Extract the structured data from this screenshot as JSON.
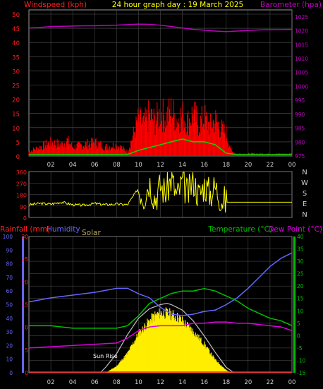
{
  "colors": {
    "background": "#000000",
    "frame": "#9a9a9a",
    "grid": "#555555",
    "wind_axis": "#ff2020",
    "baro_axis": "#c000c0",
    "title": "#ffff00",
    "wind_speed": "#ff0000",
    "wind_avg": "#00dd00",
    "wind_dir": "#ffff00",
    "rain": "#ff2020",
    "humidity": "#6666ff",
    "solar": "#ffee00",
    "temperature": "#00c000",
    "dew_point": "#dd00dd",
    "label_text": "#cfcfcf"
  },
  "chart_data": [
    {
      "type": "line",
      "panel": "wind_pressure",
      "title": "24 hour graph day : 19 March 2025",
      "left_axis_label": "Windspeed (kph)",
      "right_axis_label": "Barometer (hpa)",
      "x_ticks": [
        "02",
        "04",
        "06",
        "08",
        "10",
        "12",
        "14",
        "16",
        "18",
        "20",
        "22",
        "00"
      ],
      "y_left": {
        "ticks": [
          "0",
          "5",
          "10",
          "15",
          "20",
          "25",
          "30",
          "35",
          "40",
          "45",
          "50"
        ],
        "range": [
          0,
          50
        ]
      },
      "y_right": {
        "ticks": [
          "975",
          "980",
          "985",
          "990",
          "995",
          "1000",
          "1005",
          "1010",
          "1015",
          "1020",
          "1025"
        ],
        "range": [
          975,
          1027.5
        ]
      },
      "x_range": [
        0,
        24
      ],
      "series": [
        {
          "name": "Barometer",
          "x": [
            0,
            1,
            2,
            3,
            4,
            5,
            6,
            7,
            8,
            9,
            10,
            11,
            12,
            13,
            14,
            15,
            16,
            17,
            18,
            19,
            20,
            21,
            22,
            23,
            24
          ],
          "y": [
            1021.0,
            1021.2,
            1021.5,
            1021.6,
            1021.7,
            1021.8,
            1021.8,
            1021.9,
            1022.0,
            1022.2,
            1022.4,
            1022.3,
            1022.0,
            1021.5,
            1021.0,
            1020.5,
            1020.2,
            1019.9,
            1019.7,
            1019.9,
            1020.1,
            1020.3,
            1020.4,
            1020.4,
            1020.5
          ]
        },
        {
          "name": "Wind gust",
          "x": [
            0,
            1,
            2,
            3,
            3.5,
            4,
            5,
            6,
            7,
            8,
            9,
            10,
            10.5,
            11,
            11.5,
            12,
            12.5,
            13,
            13.5,
            14,
            14.5,
            15,
            15.5,
            16,
            16.5,
            17,
            17.5,
            18,
            18.5,
            19,
            20,
            21,
            22,
            23,
            24
          ],
          "y": [
            2,
            4,
            6,
            5,
            7,
            4,
            5,
            6,
            4,
            5,
            2,
            16,
            14,
            18,
            15,
            19,
            17,
            20,
            16,
            18,
            15,
            19,
            14,
            17,
            13,
            16,
            12,
            10,
            2,
            1,
            1,
            1,
            1,
            1,
            1
          ]
        },
        {
          "name": "Average wind",
          "x": [
            0,
            2,
            4,
            6,
            8,
            9,
            10,
            11,
            12,
            13,
            14,
            15,
            16,
            17,
            18,
            19,
            20,
            22,
            24
          ],
          "y": [
            0.5,
            0.5,
            0.5,
            0.5,
            0.5,
            0.5,
            2,
            3,
            4,
            5,
            6,
            5,
            5,
            4,
            1,
            0.5,
            0.5,
            0.5,
            0.5
          ]
        }
      ]
    },
    {
      "type": "line",
      "panel": "wind_direction",
      "y_ticks": [
        "0",
        "90",
        "180",
        "270",
        "360"
      ],
      "y_range": [
        0,
        360
      ],
      "compass_labels": [
        "N",
        "W",
        "S",
        "E",
        "N"
      ],
      "x_range": [
        0,
        24
      ],
      "series": [
        {
          "name": "Wind direction",
          "x": [
            0,
            1,
            2,
            3,
            4,
            5,
            6,
            7,
            8,
            9,
            10,
            10.5,
            11,
            11.5,
            12,
            12.5,
            13,
            13.5,
            14,
            14.5,
            15,
            15.5,
            16,
            16.5,
            17,
            17.5,
            18,
            19,
            20,
            21,
            22,
            23,
            24
          ],
          "y": [
            100,
            110,
            105,
            120,
            100,
            95,
            110,
            100,
            105,
            100,
            230,
            170,
            290,
            150,
            250,
            200,
            310,
            160,
            280,
            180,
            300,
            170,
            260,
            190,
            240,
            160,
            120,
            120,
            120,
            120,
            120,
            120,
            120
          ]
        }
      ]
    },
    {
      "type": "line",
      "panel": "rain_temp",
      "labels": {
        "rainfall": "Rainfall (mm)",
        "humidity": "Humidity",
        "solar": "Solar",
        "temperature": "Temperature (°C)",
        "dew_point": "Dew Point (°C)",
        "sun_rise": "Sun Rise"
      },
      "x_ticks": [
        "02",
        "04",
        "06",
        "08",
        "10",
        "12",
        "14",
        "16",
        "18",
        "20",
        "22",
        "00"
      ],
      "x_range": [
        0,
        24
      ],
      "humidity_axis": {
        "ticks": [
          "0",
          "10",
          "20",
          "30",
          "40",
          "50",
          "60",
          "70",
          "80",
          "90",
          "100"
        ],
        "range": [
          0,
          100
        ]
      },
      "rain_axis": {
        "ticks": [
          "0",
          "5",
          "10",
          "15",
          "20",
          "25",
          "30"
        ],
        "range": [
          0,
          30
        ]
      },
      "temp_axis": {
        "ticks": [
          "-15",
          "-10",
          "-5",
          "0",
          "5",
          "10",
          "15",
          "20",
          "25",
          "30",
          "35",
          "40"
        ],
        "range": [
          -15,
          40
        ]
      },
      "series": [
        {
          "name": "Humidity",
          "x": [
            0,
            2,
            4,
            6,
            8,
            9,
            10,
            11,
            12,
            13,
            14,
            15,
            16,
            17,
            18,
            19,
            20,
            21,
            22,
            23,
            24
          ],
          "y": [
            52,
            55,
            57,
            59,
            62,
            62,
            58,
            55,
            48,
            43,
            42,
            43,
            45,
            46,
            50,
            55,
            62,
            70,
            78,
            84,
            88
          ]
        },
        {
          "name": "Temperature",
          "x": [
            0,
            2,
            4,
            6,
            8,
            9,
            10,
            11,
            12,
            13,
            14,
            15,
            16,
            17,
            18,
            19,
            20,
            21,
            22,
            23,
            24
          ],
          "y": [
            4,
            4,
            3,
            3,
            3,
            4,
            8,
            13,
            15,
            17,
            18,
            18,
            19,
            18,
            16,
            14,
            11,
            9,
            7,
            6,
            4
          ]
        },
        {
          "name": "Dew Point",
          "x": [
            0,
            2,
            4,
            6,
            8,
            9,
            10,
            11,
            12,
            13,
            14,
            15,
            16,
            17,
            18,
            19,
            20,
            21,
            22,
            23,
            24
          ],
          "y": [
            -5,
            -4.5,
            -4,
            -3.5,
            -3,
            -1,
            2,
            3.5,
            4,
            4,
            4,
            5,
            5,
            5.5,
            5.5,
            5,
            5,
            4.5,
            4,
            3.5,
            2
          ]
        },
        {
          "name": "Solar",
          "x": [
            7,
            8,
            9,
            10,
            11,
            11.5,
            12,
            12.5,
            13,
            13.5,
            14,
            15,
            16,
            17,
            18,
            18.5
          ],
          "y": [
            0,
            5,
            15,
            30,
            40,
            44,
            46,
            46,
            45,
            43,
            40,
            32,
            22,
            10,
            2,
            0
          ]
        },
        {
          "name": "Theoretical solar",
          "x": [
            6.5,
            7,
            8,
            9,
            10,
            11,
            12,
            12.6,
            13,
            14,
            15,
            16,
            17,
            18,
            18.7
          ],
          "y": [
            0,
            4,
            14,
            28,
            40,
            47,
            50,
            51,
            50,
            46,
            38,
            27,
            15,
            4,
            0
          ]
        }
      ]
    }
  ]
}
